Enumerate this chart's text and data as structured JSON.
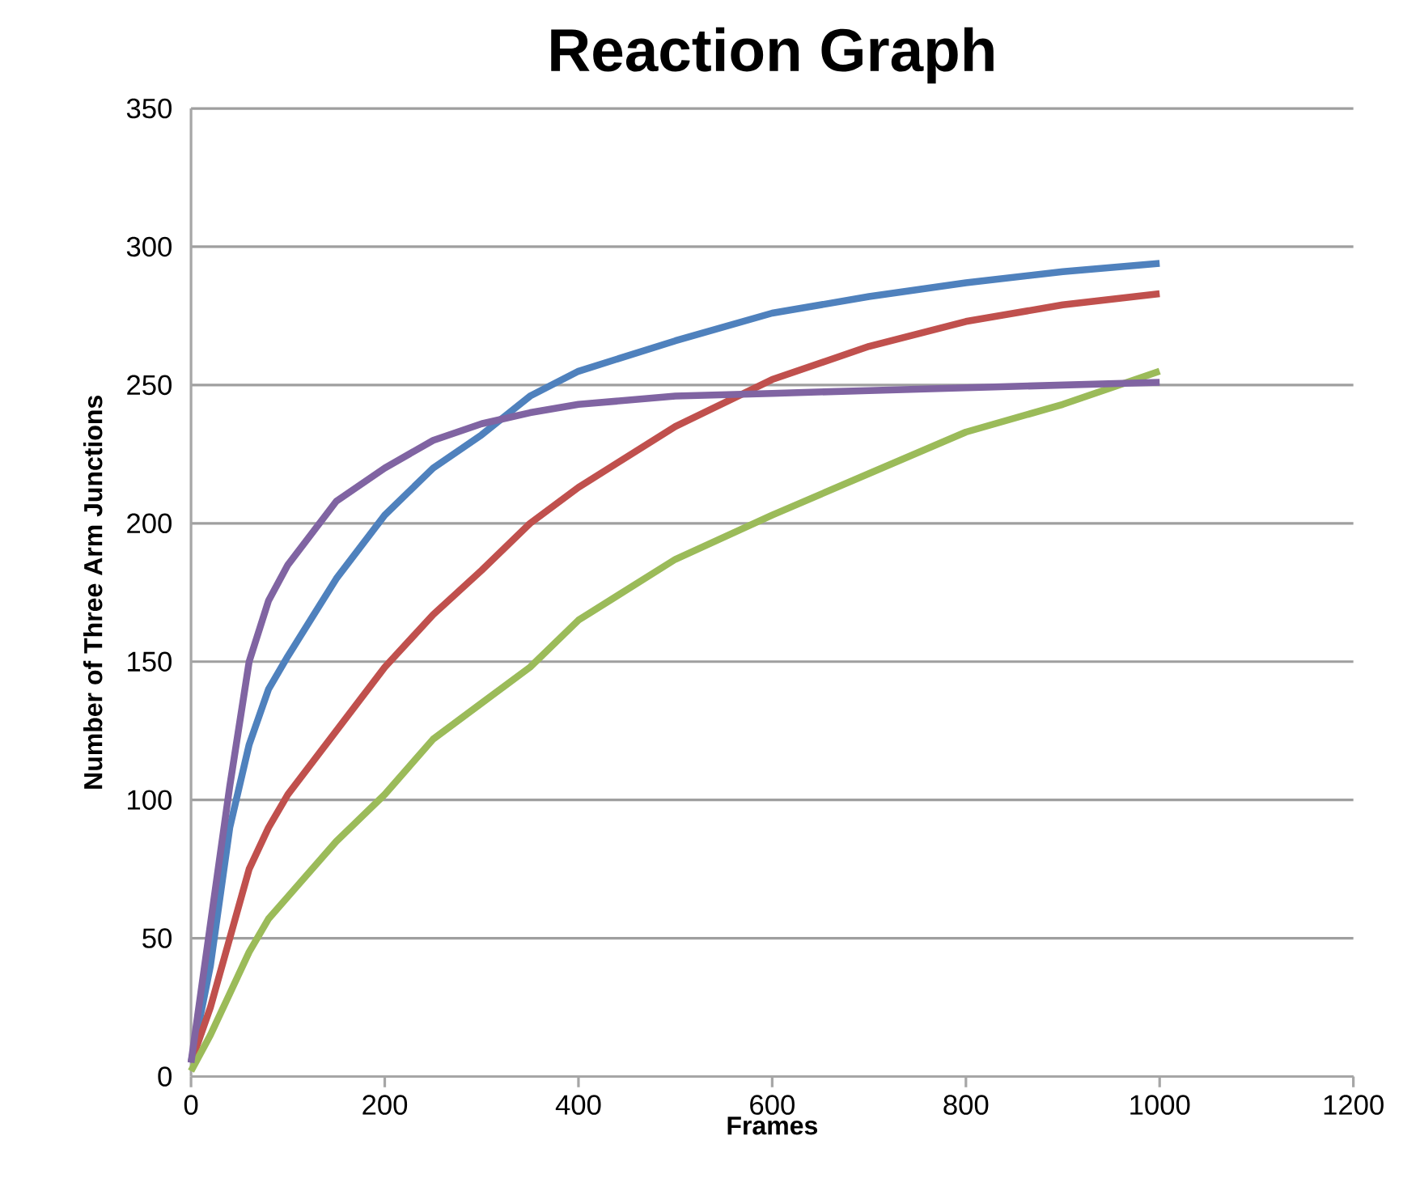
{
  "chart_data": {
    "type": "line",
    "title": "Reaction Graph",
    "xlabel": "Frames",
    "ylabel": "Number of Three Arm Junctions",
    "x": [
      0,
      20,
      40,
      60,
      80,
      100,
      150,
      200,
      250,
      300,
      350,
      400,
      500,
      600,
      700,
      800,
      900,
      1000
    ],
    "series": [
      {
        "color": "#4f81bd",
        "values": [
          5,
          40,
          90,
          120,
          140,
          152,
          180,
          203,
          220,
          232,
          246,
          255,
          266,
          276,
          282,
          287,
          291,
          294
        ]
      },
      {
        "color": "#c0504d",
        "values": [
          5,
          25,
          50,
          75,
          90,
          102,
          125,
          148,
          167,
          183,
          200,
          213,
          235,
          252,
          264,
          273,
          279,
          283
        ]
      },
      {
        "color": "#9bbb59",
        "values": [
          2,
          15,
          30,
          45,
          57,
          65,
          85,
          102,
          122,
          135,
          148,
          165,
          187,
          203,
          218,
          233,
          243,
          255
        ]
      },
      {
        "color": "#8064a2",
        "values": [
          5,
          55,
          105,
          150,
          172,
          185,
          208,
          220,
          230,
          236,
          240,
          243,
          246,
          247,
          248,
          249,
          250,
          251
        ]
      }
    ],
    "xlim": [
      0,
      1200
    ],
    "ylim": [
      0,
      350
    ],
    "xticks": [
      0,
      200,
      400,
      600,
      800,
      1000,
      1200
    ],
    "yticks": [
      0,
      50,
      100,
      150,
      200,
      250,
      300,
      350
    ],
    "grid": "y",
    "marker": "none",
    "line_style": "solid"
  }
}
